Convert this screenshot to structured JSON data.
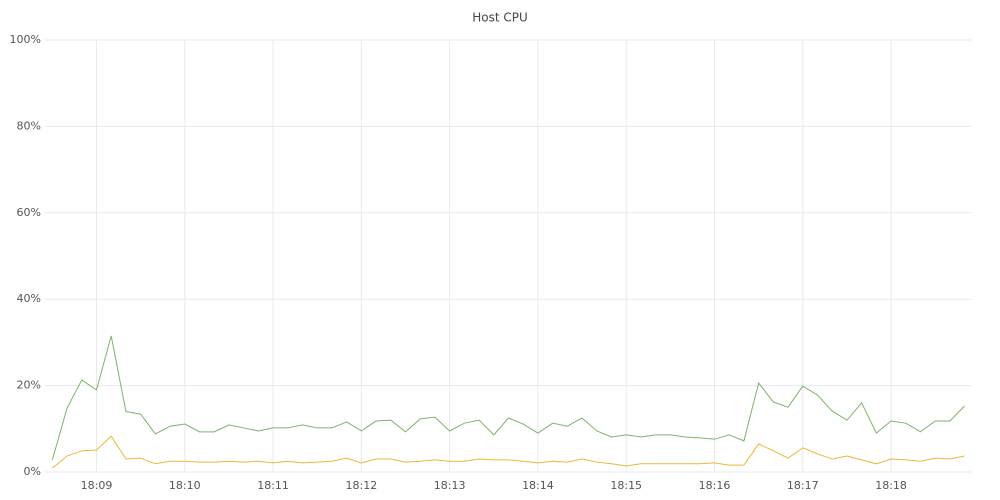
{
  "chart_data": {
    "type": "line",
    "title": "Host CPU",
    "x": [
      510,
      520,
      530,
      540,
      550,
      560,
      570,
      580,
      590,
      600,
      610,
      620,
      630,
      640,
      650,
      660,
      670,
      680,
      690,
      700,
      710,
      720,
      730,
      740,
      750,
      760,
      770,
      780,
      790,
      800,
      810,
      820,
      830,
      840,
      850,
      860,
      870,
      880,
      890,
      900,
      910,
      920,
      930,
      940,
      950,
      960,
      970,
      980,
      990,
      1000,
      1010,
      1020,
      1030,
      1040,
      1050,
      1060,
      1070,
      1080,
      1090,
      1100,
      1110,
      1120,
      1130
    ],
    "xlim": [
      505,
      1135
    ],
    "xticks": [
      {
        "value": 540,
        "label": "18:09"
      },
      {
        "value": 600,
        "label": "18:10"
      },
      {
        "value": 660,
        "label": "18:11"
      },
      {
        "value": 720,
        "label": "18:12"
      },
      {
        "value": 780,
        "label": "18:13"
      },
      {
        "value": 840,
        "label": "18:14"
      },
      {
        "value": 900,
        "label": "18:15"
      },
      {
        "value": 960,
        "label": "18:16"
      },
      {
        "value": 1020,
        "label": "18:17"
      },
      {
        "value": 1080,
        "label": "18:18"
      }
    ],
    "ylim": [
      0,
      100
    ],
    "yticks": [
      {
        "value": 0,
        "label": "0%"
      },
      {
        "value": 20,
        "label": "20%"
      },
      {
        "value": 40,
        "label": "40%"
      },
      {
        "value": 60,
        "label": "60%"
      },
      {
        "value": 80,
        "label": "80%"
      },
      {
        "value": 100,
        "label": "100%"
      }
    ],
    "grid": true,
    "series": [
      {
        "color": "#7eb26d",
        "values": [
          2.8,
          14.8,
          21.3,
          19,
          31.5,
          14,
          13.4,
          8.8,
          10.6,
          11.1,
          9.3,
          9.3,
          10.9,
          10.2,
          9.5,
          10.2,
          10.2,
          10.9,
          10.2,
          10.2,
          11.6,
          9.5,
          11.8,
          12,
          9.3,
          12.3,
          12.7,
          9.5,
          11.3,
          12,
          8.6,
          12.5,
          11.1,
          9,
          11.3,
          10.6,
          12.5,
          9.5,
          8.1,
          8.6,
          8.1,
          8.6,
          8.6,
          8.1,
          7.9,
          7.6,
          8.6,
          7.2,
          20.6,
          16.2,
          15,
          19.9,
          17.8,
          14.1,
          12,
          16,
          9,
          11.8,
          11.3,
          9.3,
          11.8,
          11.8,
          15.3
        ]
      },
      {
        "color": "#eab839",
        "values": [
          0.9,
          3.7,
          4.9,
          5.1,
          8.3,
          3,
          3.2,
          1.9,
          2.5,
          2.5,
          2.3,
          2.3,
          2.5,
          2.3,
          2.5,
          2.1,
          2.5,
          2.1,
          2.3,
          2.5,
          3.2,
          2.1,
          3,
          3,
          2.3,
          2.5,
          2.8,
          2.5,
          2.5,
          3,
          2.8,
          2.8,
          2.5,
          2.1,
          2.5,
          2.3,
          3,
          2.3,
          1.9,
          1.4,
          1.9,
          1.9,
          1.9,
          1.9,
          1.9,
          2.1,
          1.6,
          1.6,
          6.5,
          4.9,
          3.2,
          5.6,
          4.2,
          3,
          3.7,
          2.8,
          1.9,
          3,
          2.8,
          2.5,
          3.2,
          3,
          3.7
        ]
      }
    ]
  }
}
